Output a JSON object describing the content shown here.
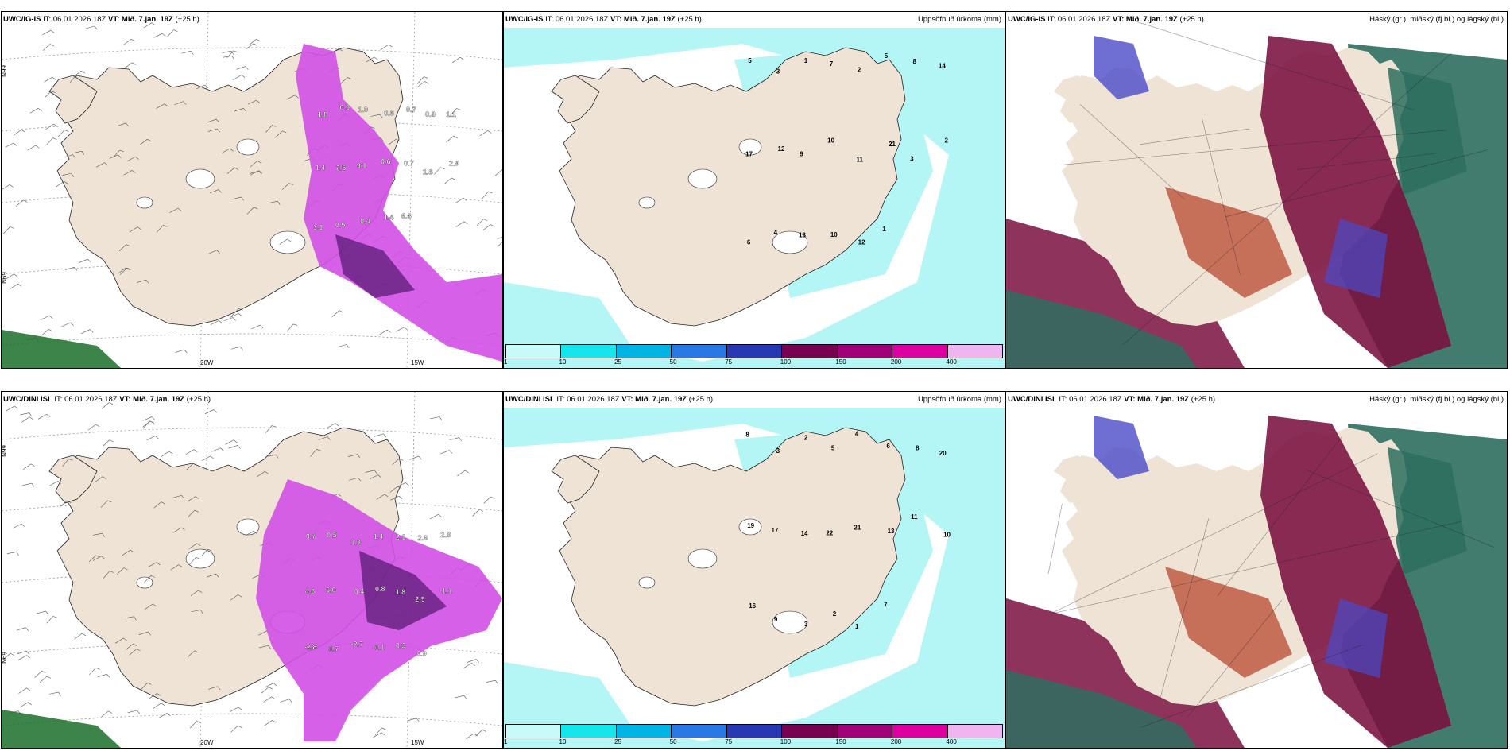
{
  "panels": [
    {
      "model": "UWC/IG-IS",
      "it_label": "IT:",
      "it_value": "06.01.2026 18Z",
      "vt_label": "VT:",
      "vt_value": "Mið. 7.jan. 19Z",
      "lead": "(+25 h)",
      "right_title": ""
    },
    {
      "model": "UWC/IG-IS",
      "it_label": "IT:",
      "it_value": "06.01.2026 18Z",
      "vt_label": "VT:",
      "vt_value": "Mið. 7.jan. 19Z",
      "lead": "(+25 h)",
      "right_title": "Uppsöfnuð úrkoma (mm)"
    },
    {
      "model": "UWC/IG-IS",
      "it_label": "IT:",
      "it_value": "06.01.2026 18Z",
      "vt_label": "VT:",
      "vt_value": "Mið. 7.jan. 19Z",
      "lead": "(+25 h)",
      "right_title": "Háský (gr.), miðský (fj.bl.) og lágský (bl.)"
    },
    {
      "model": "UWC/DINI ISL",
      "it_label": "IT:",
      "it_value": "06.01.2026 18Z",
      "vt_label": "VT:",
      "vt_value": "Mið. 7.jan. 19Z",
      "lead": "(+25 h)",
      "right_title": ""
    },
    {
      "model": "UWC/DINI ISL",
      "it_label": "IT:",
      "it_value": "06.01.2026 18Z",
      "vt_label": "VT:",
      "vt_value": "Mið. 7.jan. 19Z",
      "lead": "(+25 h)",
      "right_title": "Uppsöfnuð úrkoma (mm)"
    },
    {
      "model": "UWC/DINI ISL",
      "it_label": "IT:",
      "it_value": "06.01.2026 18Z",
      "vt_label": "VT:",
      "vt_value": "Mið. 7.jan. 19Z",
      "lead": "(+25 h)",
      "right_title": "Háský (gr.), miðský (fj.bl.) og lágský (bl.)"
    }
  ],
  "axis_labels": {
    "lat": "N99",
    "lat_bottom": "N69",
    "lon_20": "20W",
    "lon_15": "15W"
  },
  "colorbar": {
    "labels": [
      "1",
      "10",
      "25",
      "50",
      "75",
      "100",
      "150",
      "200",
      "400"
    ],
    "colors": [
      "#c8fafa",
      "#14e6ec",
      "#00b4e6",
      "#2878e6",
      "#2838b4",
      "#780050",
      "#a00078",
      "#dc00a0",
      "#f0b4f0"
    ]
  },
  "colors": {
    "land": "#efe3d6",
    "precip_light": "#b4f5f5",
    "snow_magenta": "#d250e6",
    "snow_dark": "#3a0a5a",
    "cloud_high": "#2d6e5e",
    "cloud_mid": "#7a1040",
    "cloud_low": "#4a4ac8"
  },
  "snow_labels_top": [
    "1.8",
    "0.9",
    "1.0",
    "0.6",
    "0.7",
    "0.8",
    "1.1",
    "1.4",
    "2.5",
    "9.1",
    "0.6",
    "0.7",
    "1.8",
    "2.9",
    "3.1",
    "0.5",
    "0.4",
    "1.4",
    "6.6"
  ],
  "snow_labels_bottom": [
    "0.7",
    "0.5",
    "1.3",
    "1.4",
    "2.1",
    "2.6",
    "2.8",
    "4.6",
    "6.0",
    "0.4",
    "0.8",
    "1.8",
    "2.9",
    "-1.1",
    "-2.8",
    "-1.7",
    "-2.7",
    "-1.1",
    "0.3",
    "0.9"
  ],
  "precip_labels_top": [
    "5",
    "3",
    "1",
    "7",
    "2",
    "5",
    "8",
    "14",
    "17",
    "12",
    "9",
    "10",
    "11",
    "21",
    "3",
    "2",
    "6",
    "4",
    "13",
    "10",
    "12",
    "1"
  ],
  "precip_labels_bottom": [
    "8",
    "3",
    "2",
    "5",
    "4",
    "6",
    "8",
    "20",
    "19",
    "17",
    "14",
    "22",
    "21",
    "13",
    "11",
    "10",
    "16",
    "9",
    "3",
    "2",
    "1",
    "7"
  ]
}
